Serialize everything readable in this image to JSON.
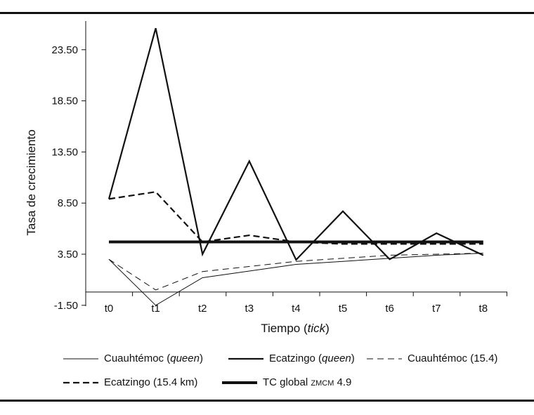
{
  "chart_data": {
    "type": "line",
    "title": "",
    "xlabel": "Tiempo",
    "xlabel_italic": "tick",
    "ylabel": "Tasa de crecimiento",
    "x": [
      "t0",
      "t1",
      "t2",
      "t3",
      "t4",
      "t5",
      "t6",
      "t7",
      "t8"
    ],
    "yticks": [
      "23.50",
      "18.50",
      "13.50",
      "8.50",
      "3.50",
      "-1.50"
    ],
    "ytick_values": [
      23.5,
      18.5,
      13.5,
      8.5,
      3.5,
      -1.5
    ],
    "ylim": [
      -1.5,
      26
    ],
    "grid": false,
    "legend_placement": "bottom",
    "series": [
      {
        "name": "Cuauhtémoc",
        "name_italic": "queen",
        "style": "thin-solid",
        "values": [
          3.0,
          -1.5,
          1.2,
          1.85,
          2.5,
          2.8,
          3.1,
          3.4,
          3.6
        ]
      },
      {
        "name": "Ecatzingo",
        "name_italic": "queen",
        "style": "thick-solid",
        "values": [
          8.9,
          25.6,
          3.5,
          12.6,
          2.95,
          7.7,
          3.0,
          5.55,
          3.4
        ]
      },
      {
        "name": "Cuauhtémoc (15.4)",
        "style": "thin-dashed",
        "values": [
          3.0,
          0.0,
          1.8,
          2.3,
          2.8,
          3.1,
          3.4,
          3.5,
          3.6
        ]
      },
      {
        "name": "Ecatzingo (15.4 km)",
        "style": "thick-dashed",
        "values": [
          8.9,
          9.6,
          4.7,
          5.35,
          4.7,
          4.5,
          4.5,
          4.5,
          4.5
        ]
      },
      {
        "name": "TC global",
        "name_smallcaps": "ZMCM",
        "name_suffix": "4.9",
        "style": "heavy-solid",
        "values": [
          4.7,
          4.7,
          4.7,
          4.7,
          4.7,
          4.7,
          4.7,
          4.7,
          4.7
        ]
      }
    ]
  }
}
